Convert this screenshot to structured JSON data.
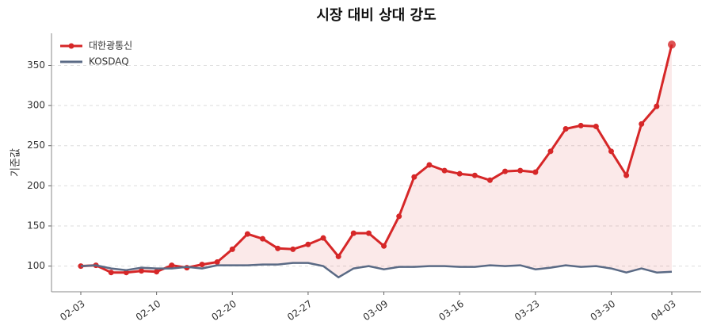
{
  "chart_data": {
    "type": "line",
    "title": "시장 대비 상대 강도",
    "y_label": "기준값",
    "categories": [
      "02-03",
      null,
      null,
      null,
      null,
      "02-10",
      null,
      null,
      null,
      null,
      "02-20",
      null,
      null,
      null,
      null,
      "02-27",
      null,
      null,
      null,
      null,
      "03-09",
      null,
      null,
      null,
      null,
      "03-16",
      null,
      null,
      null,
      null,
      "03-23",
      null,
      null,
      null,
      null,
      "03-30",
      null,
      null,
      null,
      "04-03"
    ],
    "series": [
      {
        "name": "대한광통신",
        "color": "#d62728",
        "values": [
          100,
          101,
          92,
          92,
          94,
          93,
          101,
          98,
          102,
          105,
          121,
          140,
          134,
          122,
          121,
          127,
          135,
          112,
          141,
          141,
          125,
          162,
          211,
          226,
          219,
          215,
          213,
          207,
          218,
          219,
          217,
          243,
          271,
          275,
          274,
          243,
          213,
          277,
          299,
          376
        ]
      },
      {
        "name": "KOSDAQ",
        "color": "#5a6a85",
        "values": [
          100,
          101,
          97,
          95,
          98,
          97,
          97,
          99,
          97,
          101,
          101,
          101,
          102,
          102,
          104,
          104,
          100,
          86,
          97,
          100,
          96,
          99,
          99,
          100,
          100,
          99,
          99,
          101,
          100,
          101,
          96,
          98,
          101,
          99,
          100,
          97,
          92,
          97,
          92,
          93
        ]
      }
    ],
    "ylim": [
      68,
      390
    ],
    "yticks": [
      100,
      150,
      200,
      250,
      300,
      350
    ],
    "grid": true,
    "legend": "upper left"
  }
}
